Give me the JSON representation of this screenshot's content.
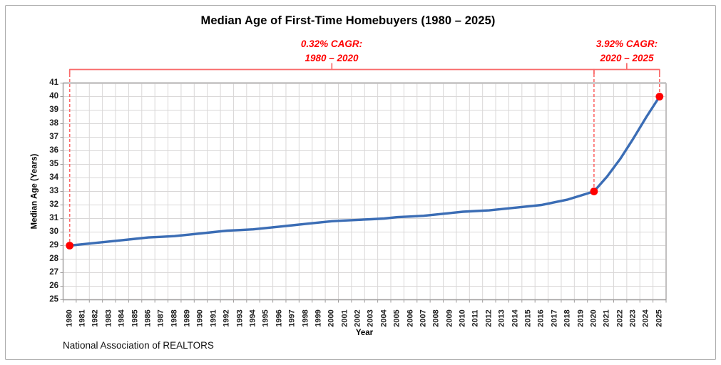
{
  "title": "Median Age of First-Time Homebuyers (1980 – 2025)",
  "source": "National Association of REALTORS",
  "annotations": [
    {
      "line1": "0.32% CAGR:",
      "line2": "1980 – 2020",
      "start_year": 1980,
      "end_year": 2020
    },
    {
      "line1": "3.92% CAGR:",
      "line2": "2020 – 2025",
      "start_year": 2020,
      "end_year": 2025
    }
  ],
  "colors": {
    "line": "#3b6db5",
    "marker": "#ff0000",
    "annotation_text": "#ff0000",
    "bracket": "#f96a6a",
    "dashed_guide": "#fb6b6b",
    "gridline": "#d9d7d7",
    "plot_border": "#c2c0c0",
    "axis_line": "#9e9c9c",
    "frame_border": "#ababab"
  },
  "chart_data": {
    "type": "line",
    "title": "Median Age of First-Time Homebuyers (1980 – 2025)",
    "xlabel": "Year",
    "ylabel": "Median Age (Years)",
    "ylim": [
      25,
      41
    ],
    "y_tick_step": 1,
    "grid": "both",
    "legend": "none",
    "x": [
      1980,
      1981,
      1982,
      1983,
      1984,
      1985,
      1986,
      1987,
      1988,
      1989,
      1990,
      1991,
      1992,
      1993,
      1994,
      1995,
      1996,
      1997,
      1998,
      1999,
      2000,
      2001,
      2002,
      2003,
      2004,
      2005,
      2006,
      2007,
      2008,
      2009,
      2010,
      2011,
      2012,
      2013,
      2014,
      2015,
      2016,
      2017,
      2018,
      2019,
      2020,
      2021,
      2022,
      2023,
      2024,
      2025
    ],
    "values": [
      29.0,
      29.1,
      29.2,
      29.3,
      29.4,
      29.5,
      29.6,
      29.65,
      29.7,
      29.8,
      29.9,
      30.0,
      30.1,
      30.15,
      30.2,
      30.3,
      30.4,
      30.5,
      30.6,
      30.7,
      30.8,
      30.85,
      30.9,
      30.95,
      31.0,
      31.1,
      31.15,
      31.2,
      31.3,
      31.4,
      31.5,
      31.55,
      31.6,
      31.7,
      31.8,
      31.9,
      32.0,
      32.2,
      32.4,
      32.7,
      33.0,
      34.1,
      35.4,
      36.9,
      38.5,
      40.0
    ],
    "highlighted_points": [
      {
        "x": 1980,
        "y": 29
      },
      {
        "x": 2020,
        "y": 33
      },
      {
        "x": 2025,
        "y": 40
      }
    ]
  }
}
